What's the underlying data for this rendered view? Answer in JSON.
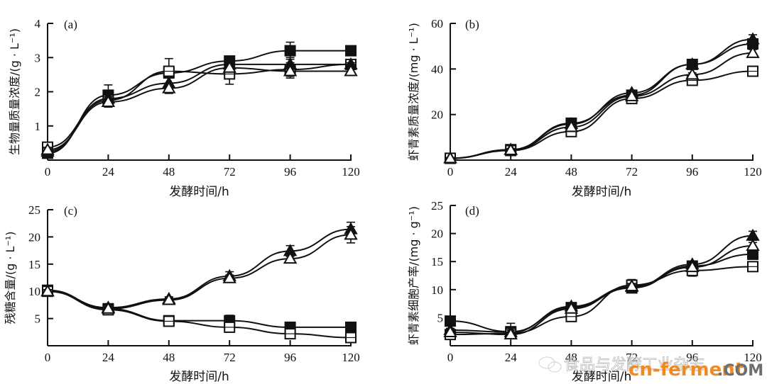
{
  "figure": {
    "watermark": {
      "journal_text": "食品与发酵工业杂志",
      "site_brand": "cn-ferment",
      "site_suffix": ".COM",
      "brand_color": "#f08a22"
    }
  },
  "chart_data": [
    {
      "id": "a",
      "type": "line",
      "panel_label": "(a)",
      "title": "",
      "xlabel": "发酵时间/h",
      "ylabel": "生物量质量浓度/(g · L⁻¹)",
      "x": [
        0,
        24,
        48,
        72,
        96,
        120
      ],
      "xticks": [
        "0",
        "24",
        "48",
        "72",
        "96",
        "120"
      ],
      "yticks": [
        "1",
        "2",
        "3",
        "4"
      ],
      "ytick_values": [
        1,
        2,
        3,
        4
      ],
      "xlim": [
        0,
        120
      ],
      "ylim": [
        0,
        4
      ],
      "grid": false,
      "series": [
        {
          "name": "filled-square",
          "marker": "filled-square",
          "values": [
            0.2,
            1.9,
            2.55,
            2.9,
            3.2,
            3.2
          ],
          "errors": [
            0.05,
            0.3,
            0.42,
            0.1,
            0.25,
            0.05
          ]
        },
        {
          "name": "open-square",
          "marker": "open-square",
          "values": [
            0.38,
            1.75,
            2.6,
            2.52,
            2.65,
            2.8
          ],
          "errors": [
            0.05,
            0.2,
            0.1,
            0.3,
            0.2,
            0.05
          ]
        },
        {
          "name": "filled-triangle",
          "marker": "filled-triangle",
          "values": [
            0.25,
            1.8,
            2.25,
            2.8,
            2.8,
            2.8
          ],
          "errors": [
            0.05,
            0.15,
            0.15,
            0.1,
            0.2,
            0.05
          ]
        },
        {
          "name": "open-triangle",
          "marker": "open-triangle",
          "values": [
            0.3,
            1.7,
            2.1,
            2.7,
            2.6,
            2.6
          ],
          "errors": [
            0.05,
            0.15,
            0.15,
            0.1,
            0.2,
            0.05
          ]
        }
      ]
    },
    {
      "id": "b",
      "type": "line",
      "panel_label": "(b)",
      "title": "",
      "xlabel": "发酵时间/h",
      "ylabel": "虾青素质量浓度/(mg · L⁻¹)",
      "x": [
        0,
        24,
        48,
        72,
        96,
        120
      ],
      "xticks": [
        "0",
        "24",
        "48",
        "72",
        "96",
        "120"
      ],
      "yticks": [
        "20",
        "40",
        "60"
      ],
      "ytick_values": [
        20,
        40,
        60
      ],
      "xlim": [
        0,
        120
      ],
      "ylim": [
        0,
        60
      ],
      "grid": false,
      "series": [
        {
          "name": "filled-square",
          "marker": "filled-square",
          "values": [
            0.8,
            4.6,
            16.2,
            28.5,
            42,
            51
          ],
          "errors": [
            0.3,
            0.5,
            0.8,
            0.8,
            0.8,
            1.5
          ]
        },
        {
          "name": "open-square",
          "marker": "open-square",
          "values": [
            0.8,
            4.2,
            12.5,
            27,
            35,
            39
          ],
          "errors": [
            0.3,
            0.5,
            0.8,
            0.8,
            0.8,
            1.0
          ]
        },
        {
          "name": "filled-triangle",
          "marker": "filled-triangle",
          "values": [
            0.8,
            4.6,
            15.8,
            29.5,
            42,
            53
          ],
          "errors": [
            0.3,
            0.5,
            0.8,
            0.8,
            0.8,
            2.0
          ]
        },
        {
          "name": "open-triangle",
          "marker": "open-triangle",
          "values": [
            0.8,
            4.4,
            14.5,
            28,
            37.5,
            47
          ],
          "errors": [
            0.3,
            0.5,
            0.8,
            0.8,
            0.8,
            1.5
          ]
        }
      ]
    },
    {
      "id": "c",
      "type": "line",
      "panel_label": "(c)",
      "title": "",
      "xlabel": "发酵时间/h",
      "ylabel": "残糖含量/(g · L⁻¹)",
      "x": [
        0,
        24,
        48,
        72,
        96,
        120
      ],
      "xticks": [
        "0",
        "24",
        "48",
        "72",
        "96",
        "120"
      ],
      "yticks": [
        "5",
        "10",
        "15",
        "20",
        "25"
      ],
      "ytick_values": [
        5,
        10,
        15,
        20,
        25
      ],
      "xlim": [
        0,
        120
      ],
      "ylim": [
        0,
        25
      ],
      "grid": false,
      "series": [
        {
          "name": "filled-square",
          "marker": "filled-square",
          "values": [
            10.2,
            6.8,
            4.6,
            4.6,
            3.4,
            3.4
          ],
          "errors": [
            0.3,
            0.3,
            0.3,
            1.0,
            0.3,
            0.3
          ]
        },
        {
          "name": "open-square",
          "marker": "open-square",
          "values": [
            10.0,
            6.6,
            4.5,
            3.4,
            2.2,
            1.5
          ],
          "errors": [
            0.3,
            0.3,
            0.3,
            0.5,
            0.4,
            0.6
          ]
        },
        {
          "name": "filled-triangle",
          "marker": "filled-triangle",
          "values": [
            10.0,
            7.0,
            8.6,
            12.8,
            17.4,
            21.4
          ],
          "errors": [
            0.3,
            0.3,
            0.4,
            0.8,
            1.0,
            1.3
          ]
        },
        {
          "name": "open-triangle",
          "marker": "open-triangle",
          "values": [
            10.0,
            6.8,
            8.4,
            12.4,
            16.0,
            20.4
          ],
          "errors": [
            0.3,
            0.3,
            0.4,
            0.6,
            0.7,
            1.5
          ]
        }
      ]
    },
    {
      "id": "d",
      "type": "line",
      "panel_label": "(d)",
      "title": "",
      "xlabel": "发酵时间/h",
      "ylabel": "虾青素细胞产率/(mg · g⁻¹)",
      "x": [
        0,
        24,
        48,
        72,
        96,
        120
      ],
      "xticks": [
        "0",
        "24",
        "48",
        "72",
        "96",
        "120"
      ],
      "yticks": [
        "5",
        "10",
        "15",
        "20",
        "25"
      ],
      "ytick_values": [
        5,
        10,
        15,
        20,
        25
      ],
      "xlim": [
        0,
        120
      ],
      "ylim": [
        0,
        25
      ],
      "grid": false,
      "series": [
        {
          "name": "filled-square",
          "marker": "filled-square",
          "values": [
            4.4,
            2.5,
            6.8,
            10.3,
            14.2,
            16.3
          ],
          "errors": [
            0.3,
            0.4,
            0.6,
            0.5,
            0.6,
            0.6
          ]
        },
        {
          "name": "open-square",
          "marker": "open-square",
          "values": [
            2.0,
            2.2,
            5.2,
            10.8,
            13.4,
            14.1
          ],
          "errors": [
            0.3,
            0.4,
            0.6,
            1.0,
            1.0,
            0.4
          ]
        },
        {
          "name": "filled-triangle",
          "marker": "filled-triangle",
          "values": [
            2.8,
            2.4,
            7.0,
            10.5,
            14.5,
            19.6
          ],
          "errors": [
            0.3,
            0.4,
            0.6,
            0.5,
            0.6,
            0.8
          ]
        },
        {
          "name": "open-triangle",
          "marker": "open-triangle",
          "values": [
            2.4,
            2.0,
            6.6,
            10.6,
            14.0,
            17.8
          ],
          "errors": [
            0.3,
            2.0,
            0.6,
            0.5,
            0.6,
            0.6
          ]
        }
      ]
    }
  ]
}
